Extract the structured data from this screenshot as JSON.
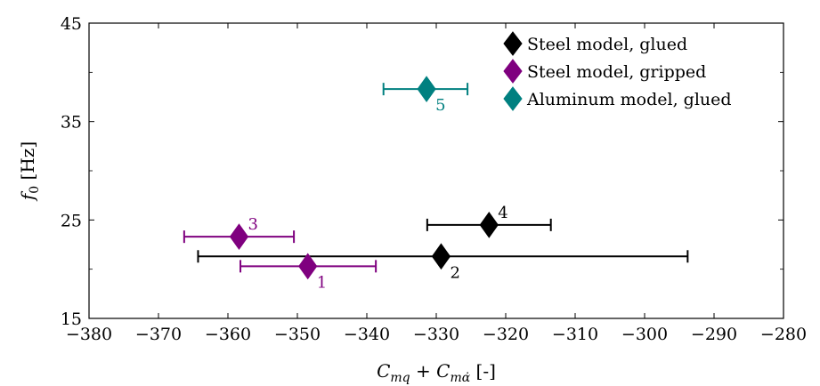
{
  "chart_data": {
    "type": "scatter",
    "xlabel": "C_mq + C_mα̇ [-]",
    "ylabel": "f_0 [Hz]",
    "xlim": [
      -380,
      -280
    ],
    "ylim": [
      15,
      45
    ],
    "xticks": [
      -380,
      -370,
      -360,
      -350,
      -340,
      -330,
      -320,
      -310,
      -300,
      -290,
      -280
    ],
    "yticks": [
      15,
      25,
      35,
      45
    ],
    "xtick_labels": [
      "−380",
      "−370",
      "−360",
      "−350",
      "−340",
      "−330",
      "−320",
      "−310",
      "−300",
      "−290",
      "−280"
    ],
    "ytick_labels": [
      "15",
      "25",
      "35",
      "45"
    ],
    "grid": false,
    "legend_position": "top-right",
    "series": [
      {
        "name": "Steel model, glued",
        "color": "#000000",
        "marker": "diamond",
        "points": [
          {
            "label": "2",
            "x": -329.3,
            "y": 21.3,
            "xerr_low": -364.3,
            "xerr_high": -293.8,
            "label_pos": "below-right"
          },
          {
            "label": "4",
            "x": -322.4,
            "y": 24.5,
            "xerr_low": -331.3,
            "xerr_high": -313.5,
            "label_pos": "above-right"
          }
        ]
      },
      {
        "name": "Steel model, gripped",
        "color": "#7f007f",
        "marker": "diamond",
        "points": [
          {
            "label": "1",
            "x": -348.5,
            "y": 20.3,
            "xerr_low": -358.2,
            "xerr_high": -338.7,
            "label_pos": "below-right"
          },
          {
            "label": "3",
            "x": -358.4,
            "y": 23.3,
            "xerr_low": -366.3,
            "xerr_high": -350.5,
            "label_pos": "above-right"
          }
        ]
      },
      {
        "name": "Aluminum model, glued",
        "color": "#008080",
        "marker": "diamond",
        "points": [
          {
            "label": "5",
            "x": -331.4,
            "y": 38.3,
            "xerr_low": -337.6,
            "xerr_high": -325.5,
            "label_pos": "below-right"
          }
        ]
      }
    ]
  }
}
